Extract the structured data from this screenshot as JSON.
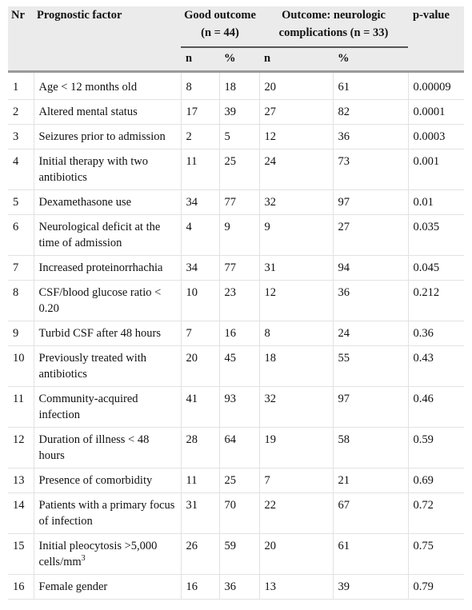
{
  "header": {
    "nr": "Nr",
    "factor": "Prognostic factor",
    "good_outcome": "Good outcome (n = 44)",
    "neuro_outcome": "Outcome: neurologic complications (n = 33)",
    "pvalue": "p-value",
    "n_label": "n",
    "pct_label": "%"
  },
  "rows": [
    {
      "nr": "1",
      "factor": "Age < 12 months old",
      "good_n": "8",
      "good_pct": "18",
      "neuro_n": "20",
      "neuro_pct": "61",
      "p": "0.00009"
    },
    {
      "nr": "2",
      "factor": "Altered mental status",
      "good_n": "17",
      "good_pct": "39",
      "neuro_n": "27",
      "neuro_pct": "82",
      "p": "0.0001"
    },
    {
      "nr": "3",
      "factor": "Seizures prior to admission",
      "good_n": "2",
      "good_pct": "5",
      "neuro_n": "12",
      "neuro_pct": "36",
      "p": "0.0003"
    },
    {
      "nr": "4",
      "factor": "Initial therapy with two antibiotics",
      "good_n": "11",
      "good_pct": "25",
      "neuro_n": "24",
      "neuro_pct": "73",
      "p": "0.001"
    },
    {
      "nr": "5",
      "factor": "Dexamethasone use",
      "good_n": "34",
      "good_pct": "77",
      "neuro_n": "32",
      "neuro_pct": "97",
      "p": "0.01"
    },
    {
      "nr": "6",
      "factor": "Neurological deficit at the time of admission",
      "good_n": "4",
      "good_pct": "9",
      "neuro_n": "9",
      "neuro_pct": "27",
      "p": "0.035"
    },
    {
      "nr": "7",
      "factor": "Increased proteinorrhachia",
      "good_n": "34",
      "good_pct": "77",
      "neuro_n": "31",
      "neuro_pct": "94",
      "p": "0.045"
    },
    {
      "nr": "8",
      "factor": "CSF/blood glucose ratio < 0.20",
      "good_n": "10",
      "good_pct": "23",
      "neuro_n": "12",
      "neuro_pct": "36",
      "p": "0.212"
    },
    {
      "nr": "9",
      "factor": "Turbid CSF after 48 hours",
      "good_n": "7",
      "good_pct": "16",
      "neuro_n": "8",
      "neuro_pct": "24",
      "p": "0.36"
    },
    {
      "nr": "10",
      "factor": "Previously treated with antibiotics",
      "good_n": "20",
      "good_pct": "45",
      "neuro_n": "18",
      "neuro_pct": "55",
      "p": "0.43"
    },
    {
      "nr": "11",
      "factor": "Community-acquired infection",
      "good_n": "41",
      "good_pct": "93",
      "neuro_n": "32",
      "neuro_pct": "97",
      "p": "0.46"
    },
    {
      "nr": "12",
      "factor": "Duration of illness < 48 hours",
      "good_n": "28",
      "good_pct": "64",
      "neuro_n": "19",
      "neuro_pct": "58",
      "p": "0.59"
    },
    {
      "nr": "13",
      "factor": "Presence of comorbidity",
      "good_n": "11",
      "good_pct": "25",
      "neuro_n": "7",
      "neuro_pct": "21",
      "p": "0.69"
    },
    {
      "nr": "14",
      "factor": "Patients with a primary focus of infection",
      "good_n": "31",
      "good_pct": "70",
      "neuro_n": "22",
      "neuro_pct": "67",
      "p": "0.72"
    },
    {
      "nr": "15",
      "factor": "Initial pleocytosis >5,000 cells/mm",
      "factor_sup": "3",
      "good_n": "26",
      "good_pct": "59",
      "neuro_n": "20",
      "neuro_pct": "61",
      "p": "0.75"
    },
    {
      "nr": "16",
      "factor": "Female gender",
      "good_n": "16",
      "good_pct": "36",
      "neuro_n": "13",
      "neuro_pct": "39",
      "p": "0.79"
    }
  ]
}
